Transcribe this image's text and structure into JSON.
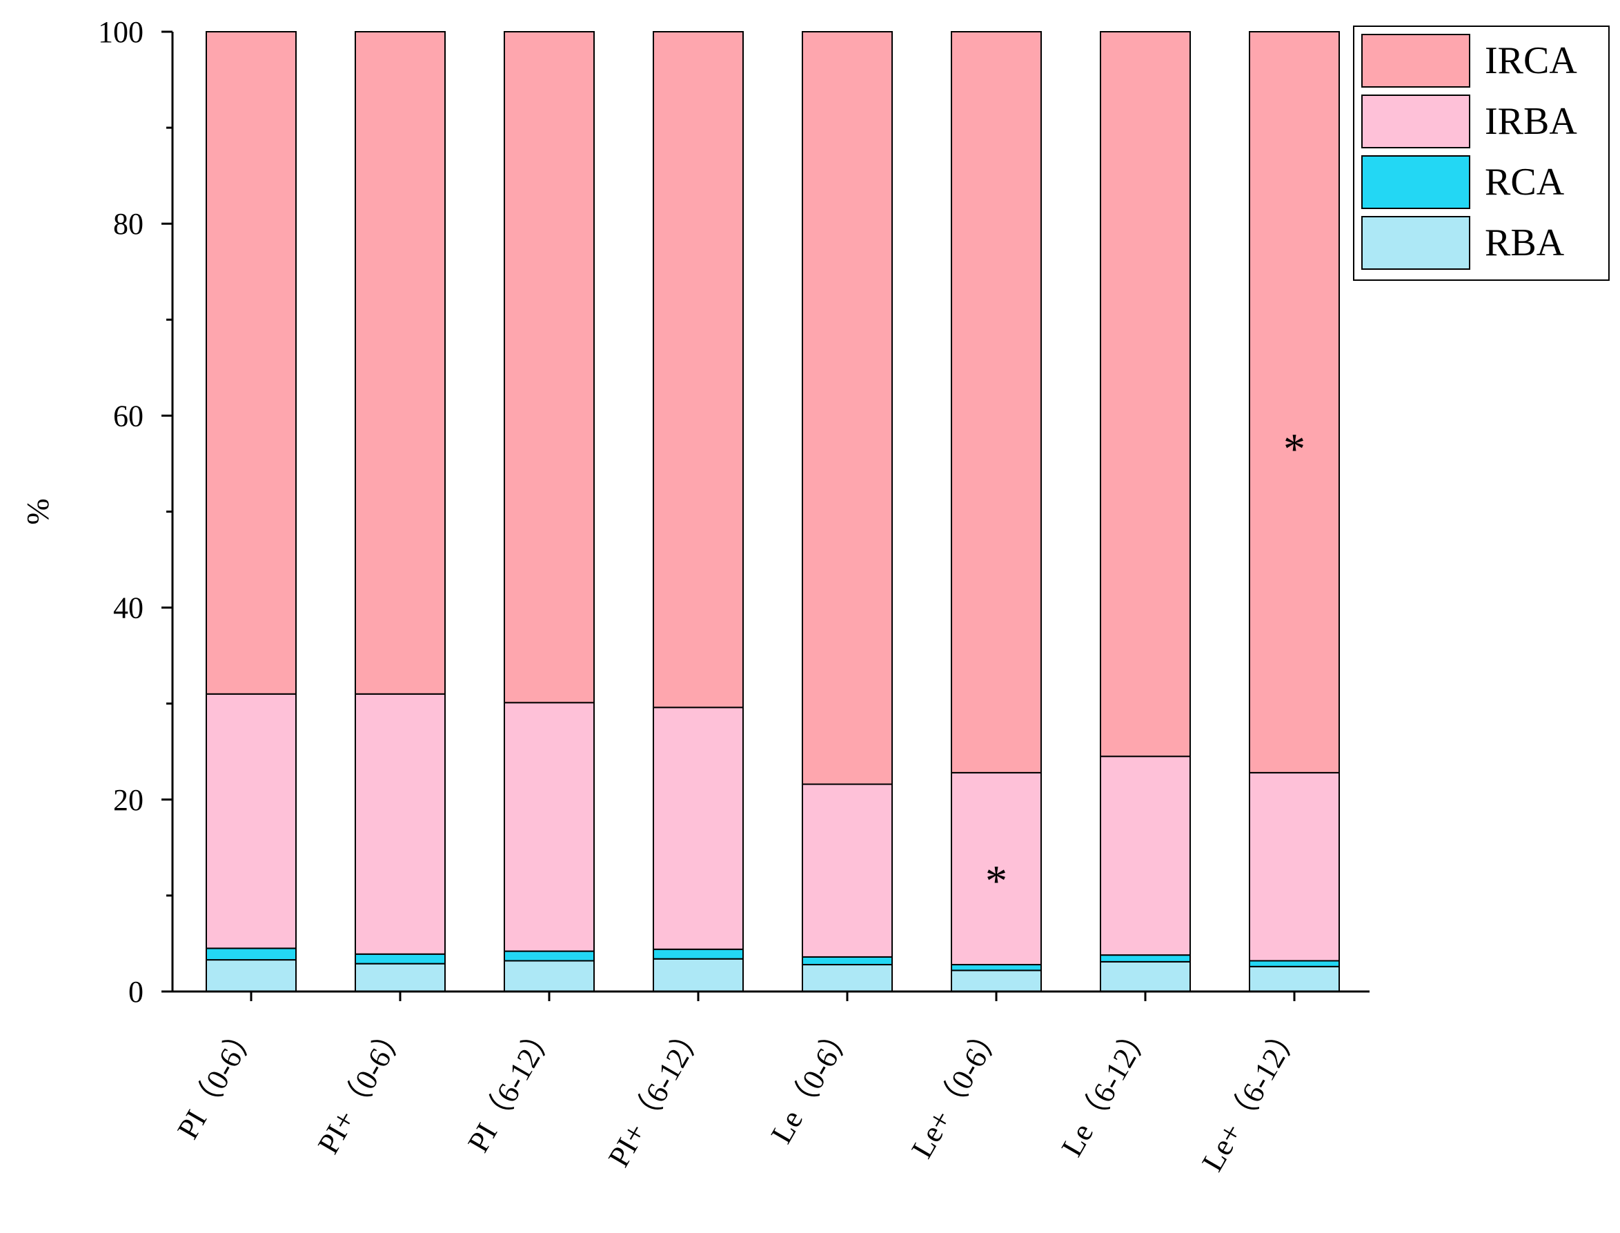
{
  "chart_data": {
    "type": "bar",
    "stacked": true,
    "title": "",
    "xlabel": "",
    "ylabel": "%",
    "ylim": [
      0,
      100
    ],
    "yticks": [
      0,
      20,
      40,
      60,
      80,
      100
    ],
    "categories": [
      "PI（0-6）",
      "PI+（0-6）",
      "PI（6-12）",
      "PI+（6-12）",
      "Le（0-6）",
      "Le+（0-6）",
      "Le（6-12）",
      "Le+（6-12）"
    ],
    "series": [
      {
        "name": "RBA",
        "color": "#ade8f6",
        "values": [
          3.3,
          2.9,
          3.2,
          3.4,
          2.8,
          2.2,
          3.1,
          2.6
        ]
      },
      {
        "name": "RCA",
        "color": "#23d7f4",
        "values": [
          1.2,
          1.0,
          1.0,
          1.0,
          0.8,
          0.6,
          0.7,
          0.6
        ]
      },
      {
        "name": "IRBA",
        "color": "#fec1d8",
        "values": [
          26.5,
          27.1,
          25.9,
          25.2,
          18.0,
          20.0,
          20.7,
          19.6
        ]
      },
      {
        "name": "IRCA",
        "color": "#fea6ae",
        "values": [
          69.0,
          69.0,
          69.9,
          70.4,
          78.4,
          77.2,
          75.5,
          77.2
        ]
      }
    ],
    "legend": {
      "placement": "top-right",
      "order": [
        "IRCA",
        "IRBA",
        "RCA",
        "RBA"
      ]
    },
    "annotations": [
      {
        "text": "*",
        "category": "Le+（0-6）",
        "y": 12
      },
      {
        "text": "*",
        "category": "Le+（6-12）",
        "y": 57
      }
    ],
    "grid": false
  }
}
